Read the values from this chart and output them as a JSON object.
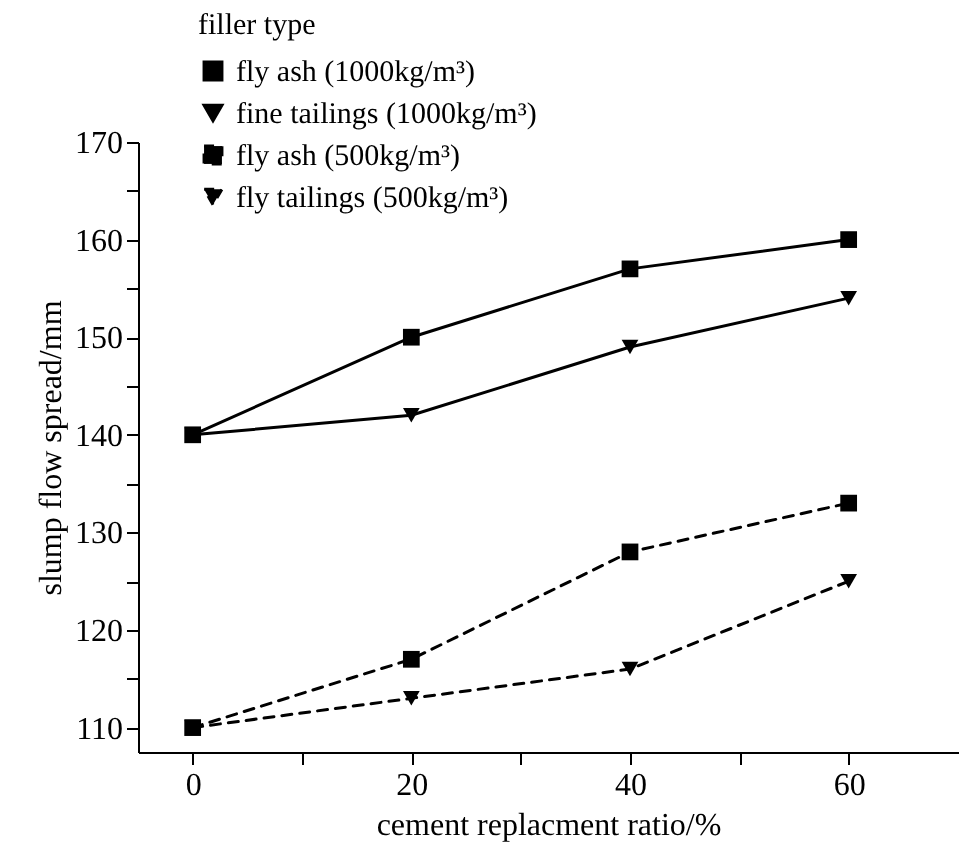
{
  "chart_data": {
    "type": "line",
    "xlabel": "cement replacment ratio/%",
    "ylabel": "slump flow spread/mm",
    "legend_title": "filler type",
    "legend": "top left",
    "grid": false,
    "x": [
      0,
      20,
      40,
      60
    ],
    "xlim": [
      -5,
      70
    ],
    "xticks": [
      0,
      {
        "value": 10,
        "label": null
      },
      20,
      {
        "value": 30,
        "label": null
      },
      40,
      {
        "value": 50,
        "label": null
      },
      60
    ],
    "ylim": [
      107.5,
      170
    ],
    "yticks": [
      110,
      {
        "value": 115,
        "label": null
      },
      120,
      {
        "value": 125,
        "label": null
      },
      130,
      {
        "value": 135,
        "label": null
      },
      140,
      {
        "value": 145,
        "label": null
      },
      150,
      {
        "value": 155,
        "label": null
      },
      160,
      {
        "value": 165,
        "label": null
      },
      170
    ],
    "series": [
      {
        "name": "fly ash (1000kg/m³)",
        "color": "#000000",
        "marker": "square",
        "line_style": "solid",
        "values": [
          140,
          150,
          157,
          160
        ]
      },
      {
        "name": "fine tailings (1000kg/m³)",
        "color": "#000000",
        "marker": "triangle",
        "line_style": "solid",
        "values": [
          140,
          142,
          149,
          154
        ]
      },
      {
        "name": "fly ash (500kg/m³)",
        "color": "#000000",
        "marker": "square",
        "line_style": "dashed",
        "values": [
          110,
          117,
          128,
          133
        ]
      },
      {
        "name": "fly tailings (500kg/m³)",
        "color": "#000000",
        "marker": "triangle",
        "line_style": "dashed",
        "values": [
          110,
          113,
          116,
          125
        ]
      }
    ]
  }
}
